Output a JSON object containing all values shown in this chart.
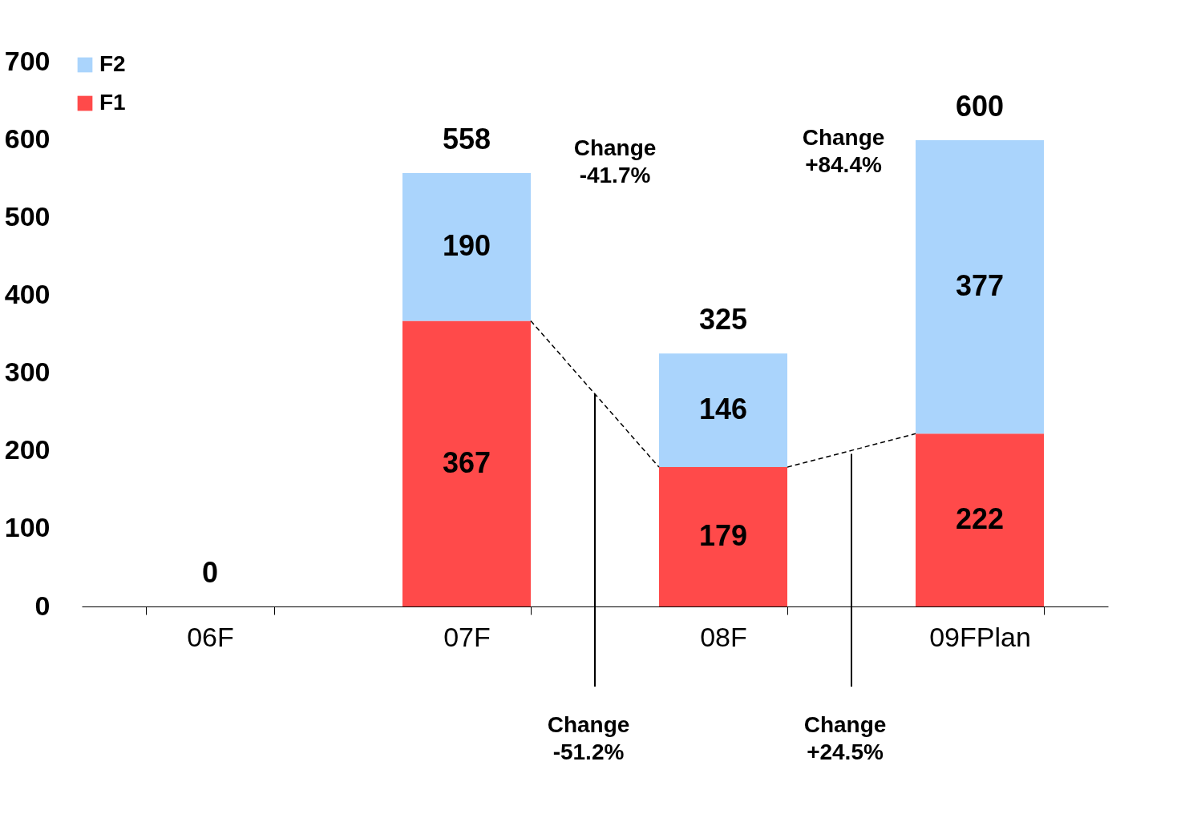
{
  "chart_data": {
    "type": "bar",
    "stacked": true,
    "categories": [
      "06F",
      "07F",
      "08F",
      "09FPlan"
    ],
    "series": [
      {
        "name": "F1",
        "color": "#ff4a4a",
        "values": [
          0,
          367,
          179,
          222
        ],
        "value_labels": [
          null,
          "367",
          "179",
          "222"
        ]
      },
      {
        "name": "F2",
        "color": "#aad4fc",
        "values": [
          0,
          190,
          146,
          377
        ],
        "value_labels": [
          null,
          "190",
          "146",
          "377"
        ]
      }
    ],
    "totals": [
      "0",
      "558",
      "325",
      "600"
    ],
    "ylim": [
      0,
      700
    ],
    "yticks": [
      0,
      100,
      200,
      300,
      400,
      500,
      600,
      700
    ],
    "grid": false,
    "legend": "top left",
    "annotations": [
      "Change\n-41.7%",
      "Change\n-51.2%",
      "Change\n+84.4%",
      "Change\n+24.5%"
    ]
  }
}
